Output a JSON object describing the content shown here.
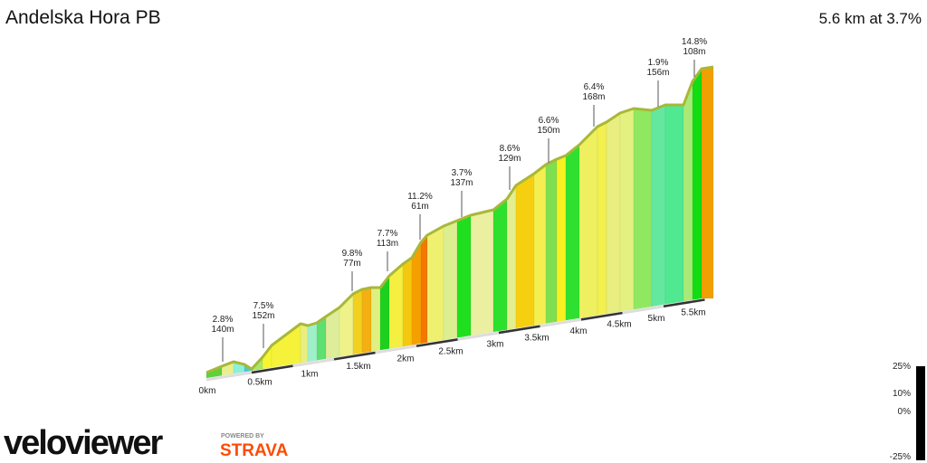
{
  "header": {
    "title": "Andelska Hora PB",
    "summary": "5.6 km at 3.7%"
  },
  "annotations": [
    {
      "grade": "2.8%",
      "length": "140m"
    },
    {
      "grade": "7.5%",
      "length": "152m"
    },
    {
      "grade": "9.8%",
      "length": "77m"
    },
    {
      "grade": "7.7%",
      "length": "113m"
    },
    {
      "grade": "11.2%",
      "length": "61m"
    },
    {
      "grade": "3.7%",
      "length": "137m"
    },
    {
      "grade": "8.6%",
      "length": "129m"
    },
    {
      "grade": "6.6%",
      "length": "150m"
    },
    {
      "grade": "6.4%",
      "length": "168m"
    },
    {
      "grade": "1.9%",
      "length": "156m"
    },
    {
      "grade": "14.8%",
      "length": "108m"
    }
  ],
  "distance_labels": [
    "0km",
    "0.5km",
    "1km",
    "1.5km",
    "2km",
    "2.5km",
    "3km",
    "3.5km",
    "4km",
    "4.5km",
    "5km",
    "5.5km"
  ],
  "legend": [
    "25%",
    "10%",
    "0%",
    "-25%"
  ],
  "logo": {
    "brand": "veloviewer",
    "powered": "POWERED BY",
    "partner": "STRAVA"
  }
}
